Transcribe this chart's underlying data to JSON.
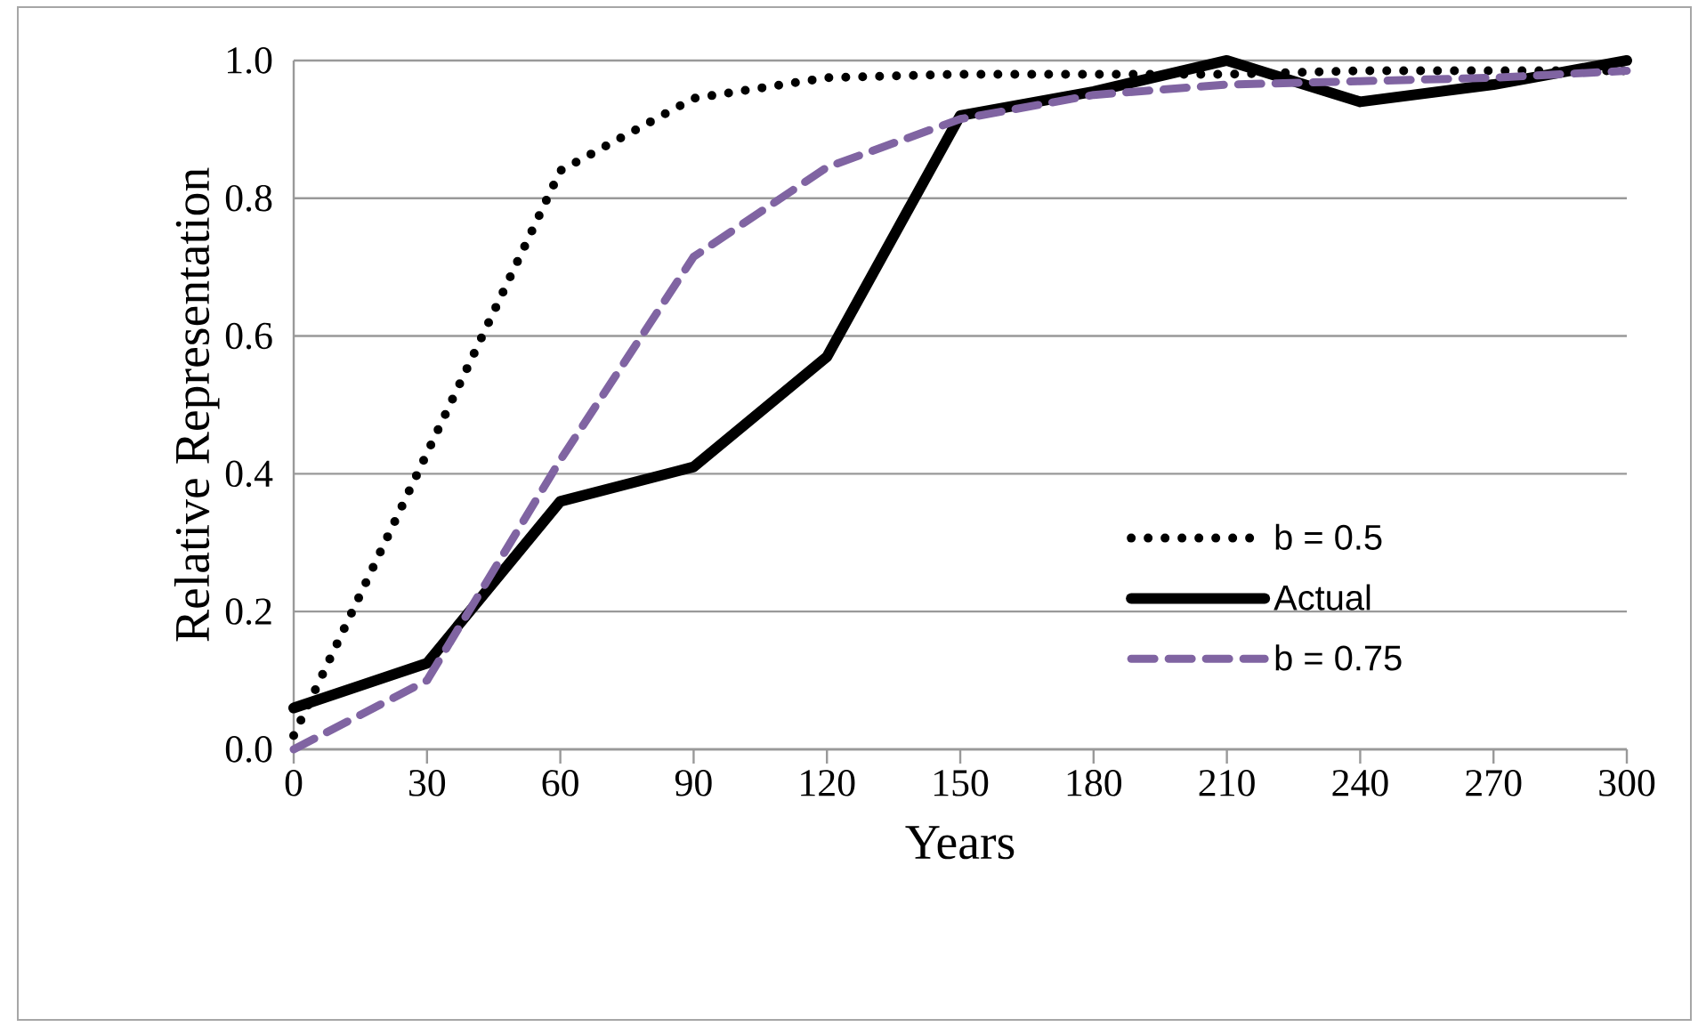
{
  "chart_data": {
    "type": "line",
    "xlabel": "Years",
    "ylabel": "Relative Representation",
    "x": [
      0,
      30,
      60,
      90,
      120,
      150,
      180,
      210,
      240,
      270,
      300
    ],
    "series": [
      {
        "name": "b = 0.5",
        "color": "#000000",
        "line_style": "dotted",
        "values": [
          0.02,
          0.43,
          0.84,
          0.945,
          0.975,
          0.98,
          0.98,
          0.98,
          0.985,
          0.985,
          0.985
        ]
      },
      {
        "name": "Actual",
        "color": "#000000",
        "line_style": "solid",
        "values": [
          0.06,
          0.125,
          0.36,
          0.41,
          0.57,
          0.92,
          0.955,
          1.0,
          0.94,
          0.965,
          1.0
        ]
      },
      {
        "name": "b = 0.75",
        "color": "#8064a2",
        "line_style": "dashed",
        "values": [
          0.0,
          0.1,
          0.42,
          0.715,
          0.845,
          0.915,
          0.95,
          0.965,
          0.97,
          0.975,
          0.985
        ]
      }
    ],
    "xlim": [
      0,
      300
    ],
    "ylim": [
      0,
      1
    ],
    "xticks": [
      0,
      30,
      60,
      90,
      120,
      150,
      180,
      210,
      240,
      270,
      300
    ],
    "yticks": [
      {
        "value": 0,
        "label": "0.0"
      },
      {
        "value": 0.2,
        "label": "0.2"
      },
      {
        "value": 0.4,
        "label": "0.4"
      },
      {
        "value": 0.6,
        "label": "0.6"
      },
      {
        "value": 0.8,
        "label": "0.8"
      },
      {
        "value": 1,
        "label": "1.0"
      }
    ],
    "grid": "y",
    "legend": "right"
  }
}
